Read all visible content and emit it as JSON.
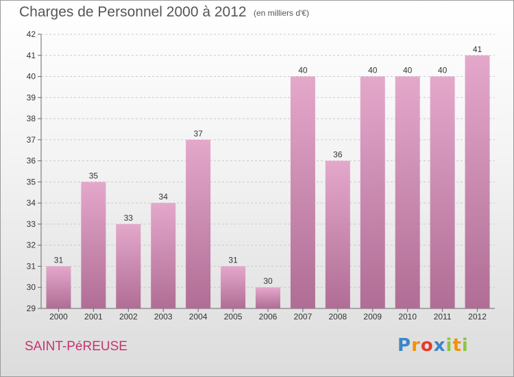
{
  "title": "Charges de Personnel 2000 à 2012",
  "subtitle": "(en milliers d'€)",
  "commune": "SAINT-PéREUSE",
  "logo": {
    "letters": [
      {
        "char": "P",
        "color": "#3a86c8"
      },
      {
        "char": "r",
        "color": "#f39200"
      },
      {
        "char": "o",
        "color": "#e5392b"
      },
      {
        "char": "x",
        "color": "#3a86c8"
      },
      {
        "char": "i",
        "color": "#8cc63e"
      },
      {
        "char": "t",
        "color": "#f39200"
      },
      {
        "char": "i",
        "color": "#8cc63e"
      }
    ]
  },
  "colors": {
    "bar_top": "#e4a8cb",
    "bar_bottom": "#b06d95",
    "commune": "#c5336f"
  },
  "chart_data": {
    "type": "bar",
    "title": "Charges de Personnel 2000 à 2012",
    "subtitle": "(en milliers d'€)",
    "categories": [
      "2000",
      "2001",
      "2002",
      "2003",
      "2004",
      "2005",
      "2006",
      "2007",
      "2008",
      "2009",
      "2010",
      "2011",
      "2012"
    ],
    "values": [
      31,
      35,
      33,
      34,
      37,
      31,
      30,
      40,
      36,
      40,
      40,
      40,
      41
    ],
    "ylim": [
      29,
      42
    ],
    "yticks": [
      29,
      30,
      31,
      32,
      33,
      34,
      35,
      36,
      37,
      38,
      39,
      40,
      41,
      42
    ],
    "grid": true,
    "data_labels": true
  }
}
